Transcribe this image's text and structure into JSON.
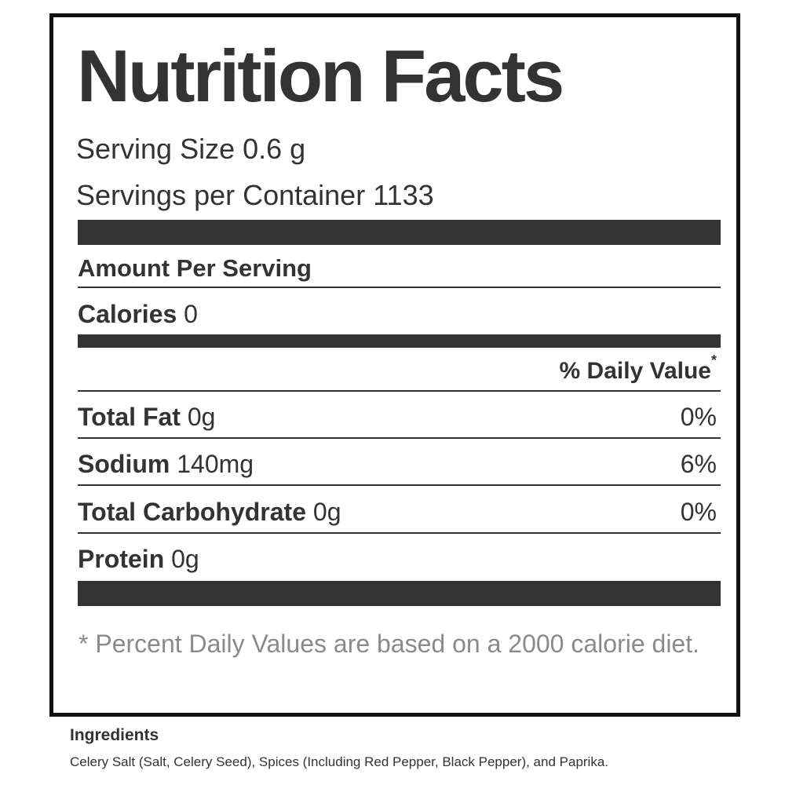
{
  "label": {
    "title": "Nutrition Facts",
    "serving_size": "Serving Size 0.6 g",
    "servings_per_container": "Servings per Container 1133",
    "amount_per_serving": "Amount Per Serving",
    "calories_label": "Calories",
    "calories_value": "0",
    "daily_value_header": "% Daily Value",
    "daily_value_mark": "*",
    "nutrients": [
      {
        "name": "Total Fat",
        "amount": "0g",
        "dv": "0%"
      },
      {
        "name": "Sodium",
        "amount": "140mg",
        "dv": "6%"
      },
      {
        "name": "Total Carbohydrate",
        "amount": "0g",
        "dv": "0%"
      },
      {
        "name": "Protein",
        "amount": "0g",
        "dv": ""
      }
    ],
    "footnote": "* Percent Daily Values are based on a 2000 calorie diet."
  },
  "ingredients": {
    "title": "Ingredients",
    "text": "Celery Salt (Salt, Celery Seed), Spices (Including Red Pepper, Black Pepper), and Paprika."
  }
}
